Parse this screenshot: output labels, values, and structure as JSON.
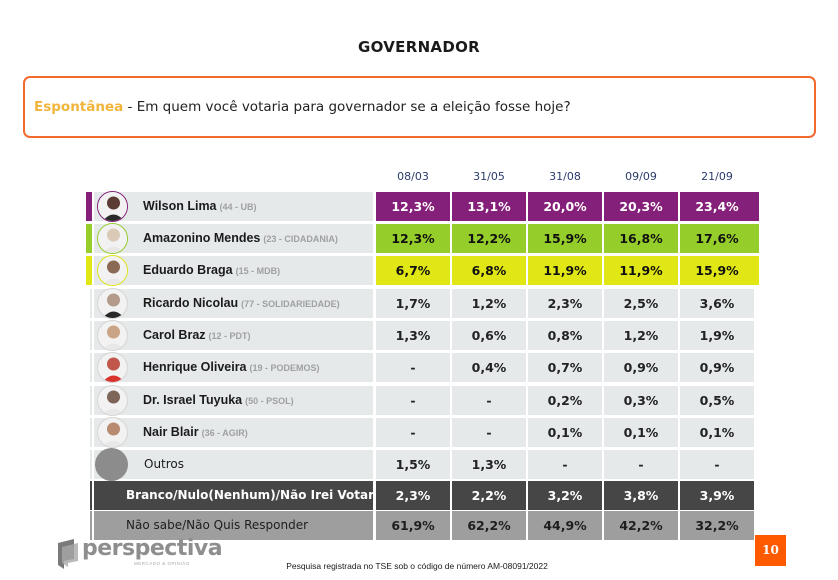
{
  "title": "GOVERNADOR",
  "question": {
    "type": "Espontânea",
    "text": " - Em quem você votaria para governador se a eleição fosse hoje?"
  },
  "colors": {
    "wilson": "#85207a",
    "amazonino": "#95ce2a",
    "braga": "#e1e714",
    "neutral": "#e5e9ea",
    "dark": "#464646",
    "mid": "#9e9e9e",
    "accent_orange": "#ff5a00",
    "question_border": "#f26a2e",
    "question_type": "#f1b53b"
  },
  "chart_data": {
    "type": "table",
    "title": "GOVERNADOR",
    "subtitle": "Espontânea - Em quem você votaria para governador se a eleição fosse hoje?",
    "columns": [
      "08/03",
      "31/05",
      "31/08",
      "09/09",
      "21/09"
    ],
    "rows": [
      {
        "name": "Wilson Lima",
        "party": "(44 - UB)",
        "values": [
          "12,3%",
          "13,1%",
          "20,0%",
          "20,3%",
          "23,4%"
        ],
        "numeric": [
          12.3,
          13.1,
          20.0,
          20.3,
          23.4
        ]
      },
      {
        "name": "Amazonino Mendes",
        "party": "(23 - CIDADANIA)",
        "values": [
          "12,3%",
          "12,2%",
          "15,9%",
          "16,8%",
          "17,6%"
        ],
        "numeric": [
          12.3,
          12.2,
          15.9,
          16.8,
          17.6
        ]
      },
      {
        "name": "Eduardo Braga",
        "party": "(15 - MDB)",
        "values": [
          "6,7%",
          "6,8%",
          "11,9%",
          "11,9%",
          "15,9%"
        ],
        "numeric": [
          6.7,
          6.8,
          11.9,
          11.9,
          15.9
        ]
      },
      {
        "name": "Ricardo Nicolau",
        "party": "(77 - SOLIDARIEDADE)",
        "values": [
          "1,7%",
          "1,2%",
          "2,3%",
          "2,5%",
          "3,6%"
        ],
        "numeric": [
          1.7,
          1.2,
          2.3,
          2.5,
          3.6
        ]
      },
      {
        "name": "Carol Braz",
        "party": "(12 - PDT)",
        "values": [
          "1,3%",
          "0,6%",
          "0,8%",
          "1,2%",
          "1,9%"
        ],
        "numeric": [
          1.3,
          0.6,
          0.8,
          1.2,
          1.9
        ]
      },
      {
        "name": "Henrique Oliveira",
        "party": "(19 - PODEMOS)",
        "values": [
          "-",
          "0,4%",
          "0,7%",
          "0,9%",
          "0,9%"
        ],
        "numeric": [
          null,
          0.4,
          0.7,
          0.9,
          0.9
        ]
      },
      {
        "name": "Dr. Israel Tuyuka",
        "party": "(50 - PSOL)",
        "values": [
          "-",
          "-",
          "0,2%",
          "0,3%",
          "0,5%"
        ],
        "numeric": [
          null,
          null,
          0.2,
          0.3,
          0.5
        ]
      },
      {
        "name": "Nair Blair",
        "party": "(36 - AGIR)",
        "values": [
          "-",
          "-",
          "0,1%",
          "0,1%",
          "0,1%"
        ],
        "numeric": [
          null,
          null,
          0.1,
          0.1,
          0.1
        ]
      },
      {
        "name": "Outros",
        "party": "",
        "values": [
          "1,5%",
          "1,3%",
          "-",
          "-",
          "-"
        ],
        "numeric": [
          1.5,
          1.3,
          null,
          null,
          null
        ]
      },
      {
        "name": "Branco/Nulo(Nenhum)/Não Irei Votar",
        "party": "",
        "values": [
          "2,3%",
          "2,2%",
          "3,2%",
          "3,8%",
          "3,9%"
        ],
        "numeric": [
          2.3,
          2.2,
          3.2,
          3.8,
          3.9
        ]
      },
      {
        "name": "Não sabe/Não Quis Responder",
        "party": "",
        "values": [
          "61,9%",
          "62,2%",
          "44,9%",
          "42,2%",
          "32,2%"
        ],
        "numeric": [
          61.9,
          62.2,
          44.9,
          42.2,
          32.2
        ]
      }
    ]
  },
  "footer": {
    "logo_text": "perspectiva",
    "logo_tagline": "MERCADO & OPINIÃO",
    "note": "Pesquisa registrada no TSE sob o código de número AM-08091/2022",
    "page_number": "10"
  }
}
